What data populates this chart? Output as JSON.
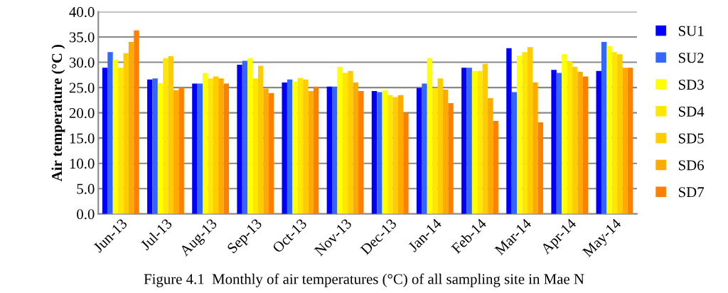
{
  "chart_data": {
    "type": "bar",
    "ylabel": "Air temperature (°C )",
    "categories": [
      "Jun-13",
      "Jul-13",
      "Aug-13",
      "Sep-13",
      "Oct-13",
      "Nov-13",
      "Dec-13",
      "Jan-14",
      "Feb-14",
      "Mar-14",
      "Apr-14",
      "May-14"
    ],
    "series": [
      {
        "name": "SU1",
        "color": "#0000ff",
        "values": [
          28.9,
          26.6,
          25.8,
          29.5,
          26.0,
          25.2,
          24.3,
          24.9,
          28.9,
          32.8,
          28.5,
          28.3
        ]
      },
      {
        "name": "SU2",
        "color": "#3366ff",
        "values": [
          32.0,
          26.8,
          25.8,
          30.3,
          26.6,
          25.2,
          24.1,
          25.8,
          28.9,
          24.1,
          27.9,
          34.0
        ]
      },
      {
        "name": "SD3",
        "color": "#ffff00",
        "values": [
          30.5,
          25.9,
          27.9,
          30.8,
          26.2,
          29.1,
          24.4,
          30.8,
          28.3,
          31.3,
          31.6,
          33.2
        ]
      },
      {
        "name": "SD4",
        "color": "#ffe600",
        "values": [
          28.9,
          30.8,
          26.8,
          26.8,
          26.9,
          27.9,
          23.5,
          24.9,
          28.3,
          32.0,
          30.1,
          32.0
        ]
      },
      {
        "name": "SD5",
        "color": "#ffcc00",
        "values": [
          31.8,
          31.2,
          27.2,
          29.3,
          26.6,
          28.3,
          23.1,
          26.8,
          29.7,
          33.0,
          29.1,
          31.6
        ]
      },
      {
        "name": "SD6",
        "color": "#ffaa00",
        "values": [
          34.0,
          24.5,
          26.8,
          24.8,
          24.3,
          26.0,
          23.5,
          24.6,
          22.9,
          26.0,
          28.1,
          28.9
        ]
      },
      {
        "name": "SD7",
        "color": "#ff8000",
        "values": [
          36.3,
          25.0,
          25.8,
          23.9,
          25.2,
          24.3,
          20.0,
          21.9,
          18.4,
          18.1,
          27.2,
          28.9
        ]
      }
    ],
    "ylim": [
      0,
      40
    ],
    "yticks": [
      {
        "value": 0,
        "label": "0.0"
      },
      {
        "value": 5,
        "label": "5.0"
      },
      {
        "value": 10,
        "label": "10.0"
      },
      {
        "value": 15,
        "label": "15.0"
      },
      {
        "value": 20,
        "label": "20.0"
      },
      {
        "value": 25,
        "label": "25.0"
      },
      {
        "value": 30,
        "label": "30.0"
      },
      {
        "value": 35,
        "label": "35.0"
      },
      {
        "value": 40,
        "label": "40.0"
      }
    ],
    "grid": "y",
    "legend": "right",
    "annotations": [
      "Figure 4.1  Monthly of air temperatures (°C) of all sampling site in Mae N"
    ]
  }
}
